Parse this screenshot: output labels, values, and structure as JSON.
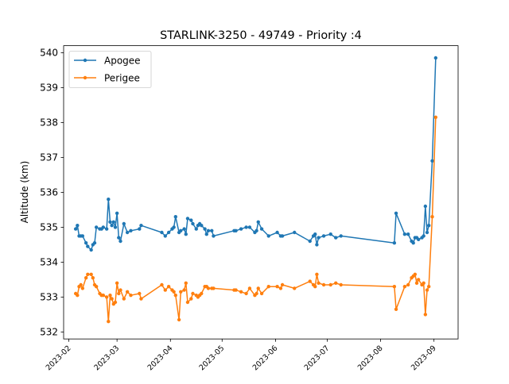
{
  "chart_data": {
    "type": "line",
    "title": "STARLINK-3250 - 49749 - Priority :4",
    "xlabel": "",
    "ylabel": "Altitude (km)",
    "xlim": [
      "2023-01-29",
      "2023-09-15"
    ],
    "ylim": [
      531.8,
      540.2
    ],
    "yticks": [
      532,
      533,
      534,
      535,
      536,
      537,
      538,
      539,
      540
    ],
    "xticks": [
      "2023-02-01",
      "2023-03-01",
      "2023-04-01",
      "2023-05-01",
      "2023-06-01",
      "2023-07-01",
      "2023-08-01",
      "2023-09-01"
    ],
    "xtick_labels": [
      "2023-02",
      "2023-03",
      "2023-04",
      "2023-05",
      "2023-06",
      "2023-07",
      "2023-08",
      "2023-09"
    ],
    "grid": false,
    "legend_position": "top-left",
    "series": [
      {
        "name": "Apogee",
        "color": "#1f77b4",
        "x": [
          "2023-02-05",
          "2023-02-06",
          "2023-02-07",
          "2023-02-08",
          "2023-02-09",
          "2023-02-11",
          "2023-02-12",
          "2023-02-14",
          "2023-02-15",
          "2023-02-16",
          "2023-02-17",
          "2023-02-19",
          "2023-02-20",
          "2023-02-21",
          "2023-02-23",
          "2023-02-24",
          "2023-02-25",
          "2023-02-26",
          "2023-02-27",
          "2023-02-28",
          "2023-03-01",
          "2023-03-02",
          "2023-03-03",
          "2023-03-05",
          "2023-03-07",
          "2023-03-09",
          "2023-03-14",
          "2023-03-15",
          "2023-03-27",
          "2023-03-29",
          "2023-03-31",
          "2023-04-02",
          "2023-04-03",
          "2023-04-04",
          "2023-04-06",
          "2023-04-07",
          "2023-04-09",
          "2023-04-10",
          "2023-04-11",
          "2023-04-13",
          "2023-04-14",
          "2023-04-16",
          "2023-04-17",
          "2023-04-18",
          "2023-04-19",
          "2023-04-21",
          "2023-04-22",
          "2023-04-23",
          "2023-04-25",
          "2023-04-26",
          "2023-05-08",
          "2023-05-09",
          "2023-05-12",
          "2023-05-15",
          "2023-05-17",
          "2023-05-20",
          "2023-05-21",
          "2023-05-22",
          "2023-05-24",
          "2023-05-28",
          "2023-06-02",
          "2023-06-04",
          "2023-06-05",
          "2023-06-12",
          "2023-06-21",
          "2023-06-23",
          "2023-06-24",
          "2023-06-25",
          "2023-06-26",
          "2023-06-29",
          "2023-07-03",
          "2023-07-06",
          "2023-07-09",
          "2023-08-09",
          "2023-08-10",
          "2023-08-15",
          "2023-08-17",
          "2023-08-19",
          "2023-08-20",
          "2023-08-21",
          "2023-08-22",
          "2023-08-23",
          "2023-08-25",
          "2023-08-26",
          "2023-08-27",
          "2023-08-28",
          "2023-08-29",
          "2023-08-31",
          "2023-09-02"
        ],
        "values": [
          534.95,
          535.05,
          534.75,
          534.75,
          534.75,
          534.55,
          534.45,
          534.35,
          534.5,
          534.55,
          535.0,
          534.95,
          534.95,
          535.0,
          534.95,
          535.8,
          535.15,
          535.05,
          535.15,
          535.0,
          535.4,
          534.7,
          534.6,
          535.1,
          534.85,
          534.9,
          534.95,
          535.05,
          534.85,
          534.75,
          534.85,
          534.95,
          535.0,
          535.3,
          534.85,
          534.9,
          534.95,
          534.8,
          535.25,
          535.2,
          535.1,
          534.95,
          535.05,
          535.1,
          535.05,
          534.95,
          534.8,
          534.9,
          534.9,
          534.75,
          534.9,
          534.9,
          534.95,
          535.0,
          535.0,
          534.85,
          534.9,
          535.15,
          534.95,
          534.75,
          534.85,
          534.75,
          534.75,
          534.85,
          534.6,
          534.75,
          534.8,
          534.5,
          534.7,
          534.75,
          534.8,
          534.7,
          534.75,
          534.55,
          535.4,
          534.8,
          534.8,
          534.6,
          534.55,
          534.7,
          534.7,
          534.65,
          534.7,
          534.75,
          535.6,
          534.85,
          535.05,
          536.9,
          539.85
        ]
      },
      {
        "name": "Perigee",
        "color": "#ff7f0e",
        "x": [
          "2023-02-05",
          "2023-02-06",
          "2023-02-07",
          "2023-02-08",
          "2023-02-09",
          "2023-02-11",
          "2023-02-12",
          "2023-02-14",
          "2023-02-15",
          "2023-02-16",
          "2023-02-17",
          "2023-02-19",
          "2023-02-20",
          "2023-02-21",
          "2023-02-23",
          "2023-02-24",
          "2023-02-25",
          "2023-02-26",
          "2023-02-27",
          "2023-02-28",
          "2023-03-01",
          "2023-03-02",
          "2023-03-03",
          "2023-03-05",
          "2023-03-07",
          "2023-03-09",
          "2023-03-14",
          "2023-03-15",
          "2023-03-27",
          "2023-03-29",
          "2023-03-31",
          "2023-04-02",
          "2023-04-03",
          "2023-04-04",
          "2023-04-06",
          "2023-04-07",
          "2023-04-09",
          "2023-04-10",
          "2023-04-11",
          "2023-04-13",
          "2023-04-14",
          "2023-04-16",
          "2023-04-17",
          "2023-04-18",
          "2023-04-19",
          "2023-04-21",
          "2023-04-22",
          "2023-04-23",
          "2023-04-25",
          "2023-04-26",
          "2023-05-08",
          "2023-05-09",
          "2023-05-12",
          "2023-05-15",
          "2023-05-17",
          "2023-05-20",
          "2023-05-21",
          "2023-05-22",
          "2023-05-24",
          "2023-05-28",
          "2023-06-02",
          "2023-06-04",
          "2023-06-05",
          "2023-06-12",
          "2023-06-21",
          "2023-06-23",
          "2023-06-24",
          "2023-06-25",
          "2023-06-26",
          "2023-06-29",
          "2023-07-03",
          "2023-07-06",
          "2023-07-09",
          "2023-08-09",
          "2023-08-10",
          "2023-08-15",
          "2023-08-17",
          "2023-08-19",
          "2023-08-20",
          "2023-08-21",
          "2023-08-22",
          "2023-08-23",
          "2023-08-25",
          "2023-08-26",
          "2023-08-27",
          "2023-08-28",
          "2023-08-29",
          "2023-08-31",
          "2023-09-02"
        ],
        "values": [
          533.1,
          533.05,
          533.3,
          533.35,
          533.25,
          533.55,
          533.65,
          533.65,
          533.55,
          533.35,
          533.3,
          533.1,
          533.05,
          533.05,
          533.0,
          532.3,
          533.05,
          532.95,
          532.8,
          532.85,
          533.4,
          533.1,
          533.2,
          532.95,
          533.15,
          533.05,
          533.1,
          532.95,
          533.35,
          533.2,
          533.3,
          533.2,
          533.15,
          533.05,
          532.35,
          533.15,
          533.2,
          533.4,
          532.85,
          532.95,
          533.1,
          533.05,
          533.0,
          533.05,
          533.1,
          533.3,
          533.3,
          533.25,
          533.25,
          533.25,
          533.2,
          533.2,
          533.15,
          533.1,
          533.25,
          533.05,
          533.1,
          533.25,
          533.1,
          533.3,
          533.3,
          533.25,
          533.35,
          533.25,
          533.45,
          533.35,
          533.3,
          533.65,
          533.4,
          533.35,
          533.35,
          533.4,
          533.35,
          533.3,
          532.65,
          533.3,
          533.35,
          533.55,
          533.6,
          533.65,
          533.4,
          533.5,
          533.35,
          533.4,
          532.5,
          533.2,
          533.3,
          535.3,
          538.15
        ]
      }
    ]
  }
}
